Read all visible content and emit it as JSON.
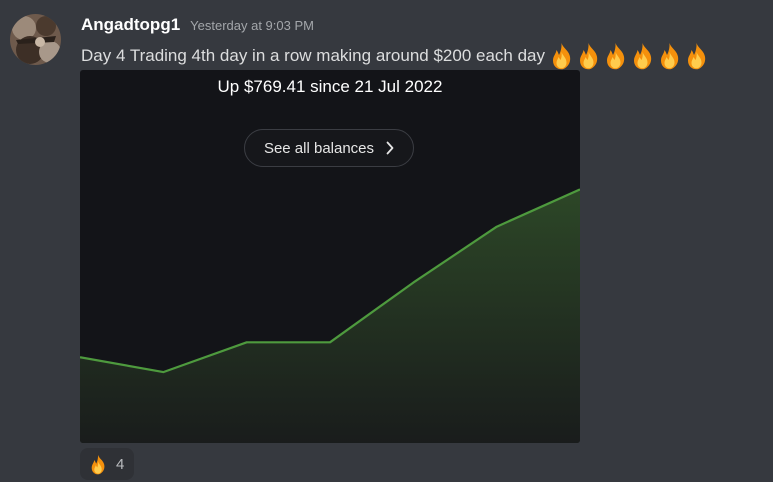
{
  "message": {
    "username": "Angadtopg1",
    "timestamp": "Yesterday at 9:03 PM",
    "text": "Day 4 Trading 4th day in a row making around $200 each day",
    "emoji_icons": [
      "fire-emoji",
      "fire-emoji",
      "fire-emoji",
      "fire-emoji",
      "fire-emoji",
      "fire-emoji"
    ]
  },
  "attachment": {
    "summary": "Up $769.41 since 21 Jul 2022",
    "button_label": "See all balances",
    "button_icon": "chevron-right-icon",
    "line_color": "#4e9a3e"
  },
  "chart_data": {
    "type": "area",
    "series": [
      {
        "values": [
          0.23,
          0.19,
          0.27,
          0.27,
          0.43,
          0.58,
          0.68
        ]
      }
    ],
    "ylim": [
      0,
      1
    ],
    "grid": false
  },
  "reaction": {
    "emoji": "fire-emoji",
    "count": "4"
  },
  "colors": {
    "background": "#36393f",
    "attachment_bg": "#131418",
    "accent_green": "#4e9a3e"
  }
}
